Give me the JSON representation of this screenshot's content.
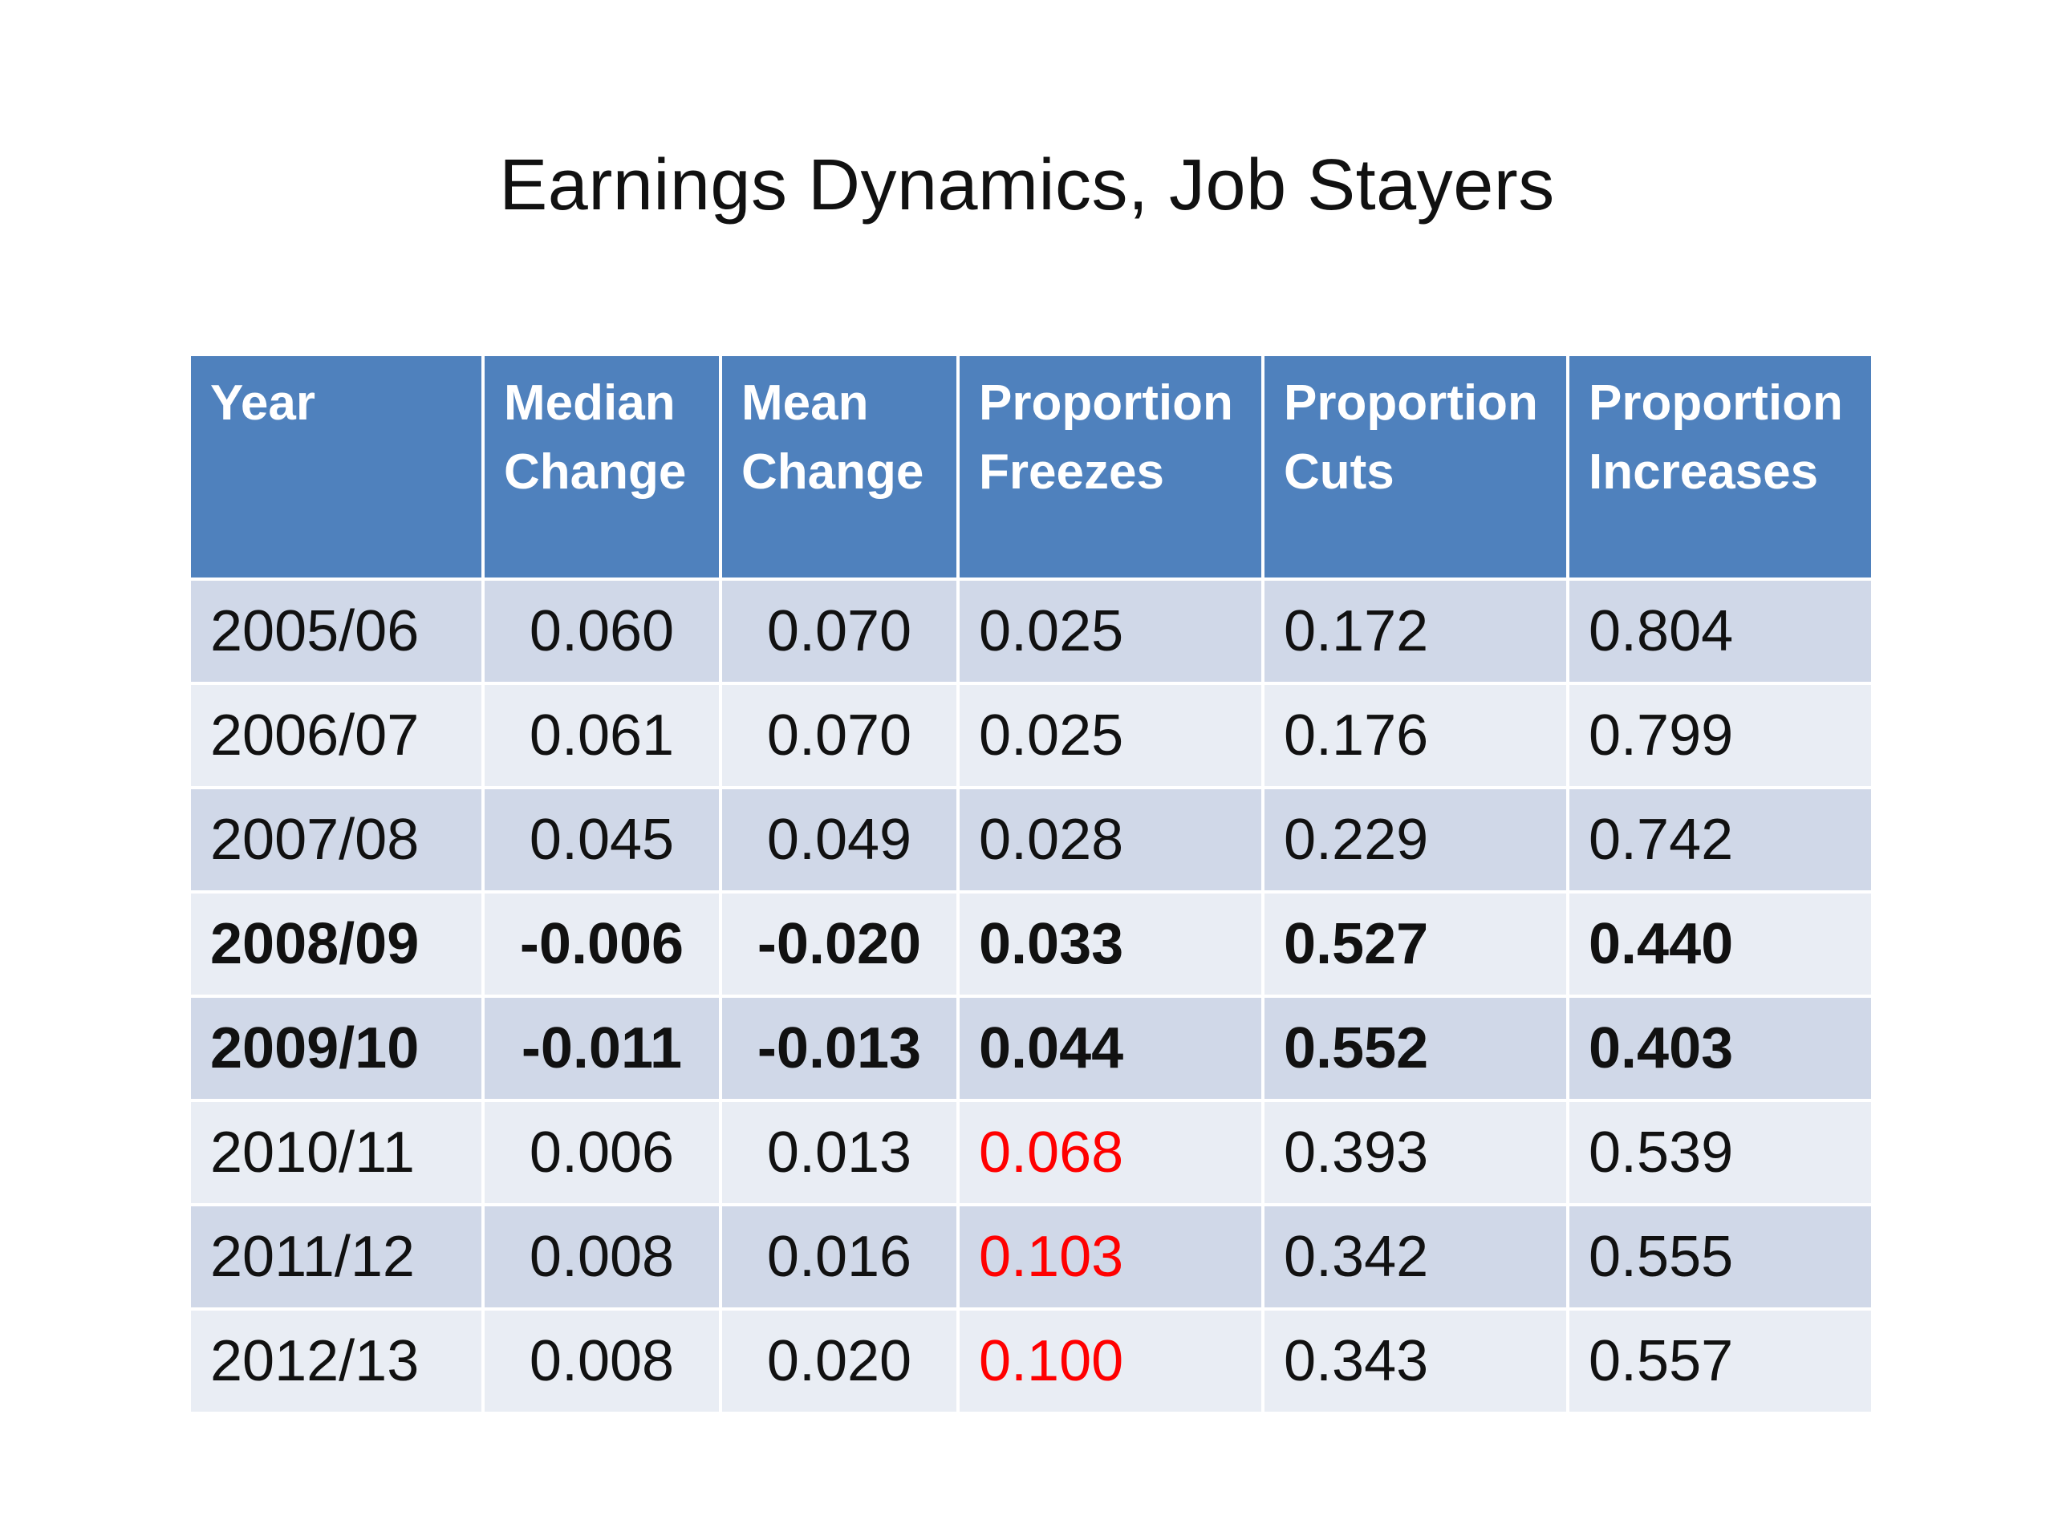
{
  "slide": {
    "title": "Earnings Dynamics, Job Stayers"
  },
  "table": {
    "headers": [
      {
        "line1": "Year",
        "line2": ""
      },
      {
        "line1": "Median",
        "line2": "Change"
      },
      {
        "line1": "Mean",
        "line2": "Change"
      },
      {
        "line1": "Proportion",
        "line2": "Freezes"
      },
      {
        "line1": "Proportion",
        "line2": "Cuts"
      },
      {
        "line1": "Proportion",
        "line2": "Increases"
      }
    ],
    "rows": [
      {
        "year": "2005/06",
        "median": "0.060",
        "mean": "0.070",
        "freezes": "0.025",
        "cuts": "0.172",
        "increases": "0.804",
        "bold": false,
        "freezes_highlight": false
      },
      {
        "year": "2006/07",
        "median": "0.061",
        "mean": "0.070",
        "freezes": "0.025",
        "cuts": "0.176",
        "increases": "0.799",
        "bold": false,
        "freezes_highlight": false
      },
      {
        "year": "2007/08",
        "median": "0.045",
        "mean": "0.049",
        "freezes": "0.028",
        "cuts": "0.229",
        "increases": "0.742",
        "bold": false,
        "freezes_highlight": false
      },
      {
        "year": "2008/09",
        "median": "-0.006",
        "mean": "-0.020",
        "freezes": "0.033",
        "cuts": "0.527",
        "increases": "0.440",
        "bold": true,
        "freezes_highlight": false
      },
      {
        "year": "2009/10",
        "median": "-0.011",
        "mean": "-0.013",
        "freezes": "0.044",
        "cuts": "0.552",
        "increases": "0.403",
        "bold": true,
        "freezes_highlight": false
      },
      {
        "year": "2010/11",
        "median": "0.006",
        "mean": "0.013",
        "freezes": "0.068",
        "cuts": "0.393",
        "increases": "0.539",
        "bold": false,
        "freezes_highlight": true
      },
      {
        "year": "2011/12",
        "median": "0.008",
        "mean": "0.016",
        "freezes": "0.103",
        "cuts": "0.342",
        "increases": "0.555",
        "bold": false,
        "freezes_highlight": true
      },
      {
        "year": "2012/13",
        "median": "0.008",
        "mean": "0.020",
        "freezes": "0.100",
        "cuts": "0.343",
        "increases": "0.557",
        "bold": false,
        "freezes_highlight": true
      }
    ]
  },
  "colors": {
    "header_bg": "#4f81bd",
    "row_dark": "#d0d8e8",
    "row_light": "#e9edf4",
    "highlight_text": "#ff0000"
  }
}
